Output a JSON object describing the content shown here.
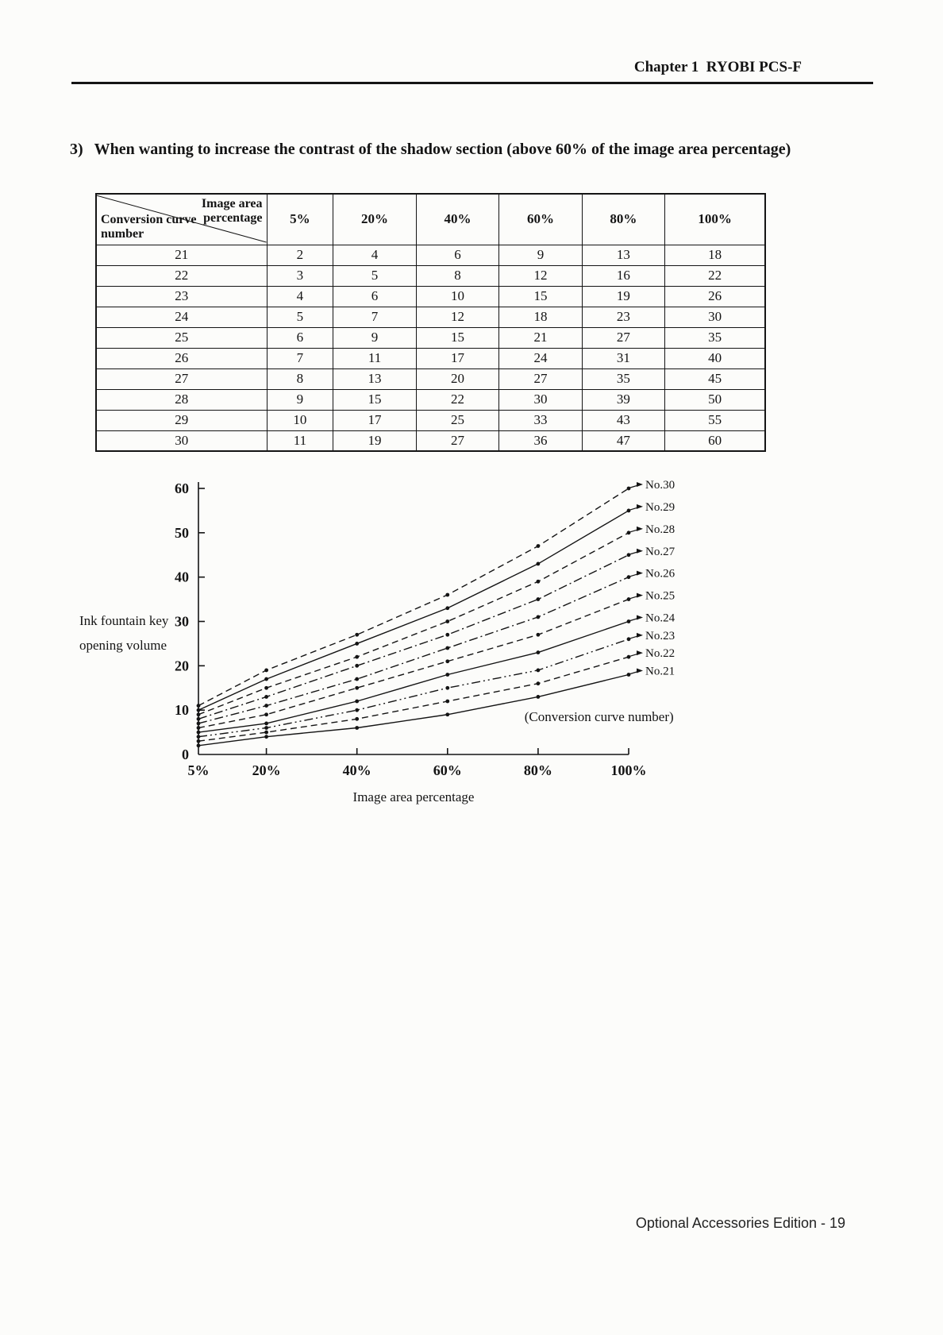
{
  "page": {
    "header": "Chapter 1  RYOBI PCS-F",
    "footer": "Optional Accessories Edition - 19"
  },
  "section": {
    "number": "3)",
    "title": "When wanting to increase the contrast of the shadow section (above 60% of the image area percentage)"
  },
  "table": {
    "corner_top": "Image area percentage",
    "corner_bottom": "Conversion curve number",
    "columns": [
      "5%",
      "20%",
      "40%",
      "60%",
      "80%",
      "100%"
    ],
    "rows": [
      {
        "curve": "21",
        "values": [
          "2",
          "4",
          "6",
          "9",
          "13",
          "18"
        ]
      },
      {
        "curve": "22",
        "values": [
          "3",
          "5",
          "8",
          "12",
          "16",
          "22"
        ]
      },
      {
        "curve": "23",
        "values": [
          "4",
          "6",
          "10",
          "15",
          "19",
          "26"
        ]
      },
      {
        "curve": "24",
        "values": [
          "5",
          "7",
          "12",
          "18",
          "23",
          "30"
        ]
      },
      {
        "curve": "25",
        "values": [
          "6",
          "9",
          "15",
          "21",
          "27",
          "35"
        ]
      },
      {
        "curve": "26",
        "values": [
          "7",
          "11",
          "17",
          "24",
          "31",
          "40"
        ]
      },
      {
        "curve": "27",
        "values": [
          "8",
          "13",
          "20",
          "27",
          "35",
          "45"
        ]
      },
      {
        "curve": "28",
        "values": [
          "9",
          "15",
          "22",
          "30",
          "39",
          "50"
        ]
      },
      {
        "curve": "29",
        "values": [
          "10",
          "17",
          "25",
          "33",
          "43",
          "55"
        ]
      },
      {
        "curve": "30",
        "values": [
          "11",
          "19",
          "27",
          "36",
          "47",
          "60"
        ]
      }
    ]
  },
  "chart_data": {
    "type": "line",
    "title": "",
    "x": [
      5,
      20,
      40,
      60,
      80,
      100
    ],
    "x_labels": [
      "5%",
      "20%",
      "40%",
      "60%",
      "80%",
      "100%"
    ],
    "xlim": [
      5,
      100
    ],
    "ylim": [
      0,
      60
    ],
    "yticks": [
      0,
      10,
      20,
      30,
      40,
      50,
      60
    ],
    "ylabel_lines": [
      "Ink fountain key",
      "opening volume"
    ],
    "xlabel": "Image area percentage",
    "annotation": "(Conversion curve number)",
    "line_color": "#141414",
    "grid": false,
    "legend_position": "right-of-lines",
    "series": [
      {
        "name": "No.21",
        "values": [
          2,
          4,
          6,
          9,
          13,
          18
        ],
        "style": "solid"
      },
      {
        "name": "No.22",
        "values": [
          3,
          5,
          8,
          12,
          16,
          22
        ],
        "style": "dashed"
      },
      {
        "name": "No.23",
        "values": [
          4,
          6,
          10,
          15,
          19,
          26
        ],
        "style": "dashdotdot"
      },
      {
        "name": "No.24",
        "values": [
          5,
          7,
          12,
          18,
          23,
          30
        ],
        "style": "solid"
      },
      {
        "name": "No.25",
        "values": [
          6,
          9,
          15,
          21,
          27,
          35
        ],
        "style": "dashed"
      },
      {
        "name": "No.26",
        "values": [
          7,
          11,
          17,
          24,
          31,
          40
        ],
        "style": "dashdot"
      },
      {
        "name": "No.27",
        "values": [
          8,
          13,
          20,
          27,
          35,
          45
        ],
        "style": "dashdot"
      },
      {
        "name": "No.28",
        "values": [
          9,
          15,
          22,
          30,
          39,
          50
        ],
        "style": "dashed"
      },
      {
        "name": "No.29",
        "values": [
          10,
          17,
          25,
          33,
          43,
          55
        ],
        "style": "solid"
      },
      {
        "name": "No.30",
        "values": [
          11,
          19,
          27,
          36,
          47,
          60
        ],
        "style": "dashed"
      }
    ]
  }
}
